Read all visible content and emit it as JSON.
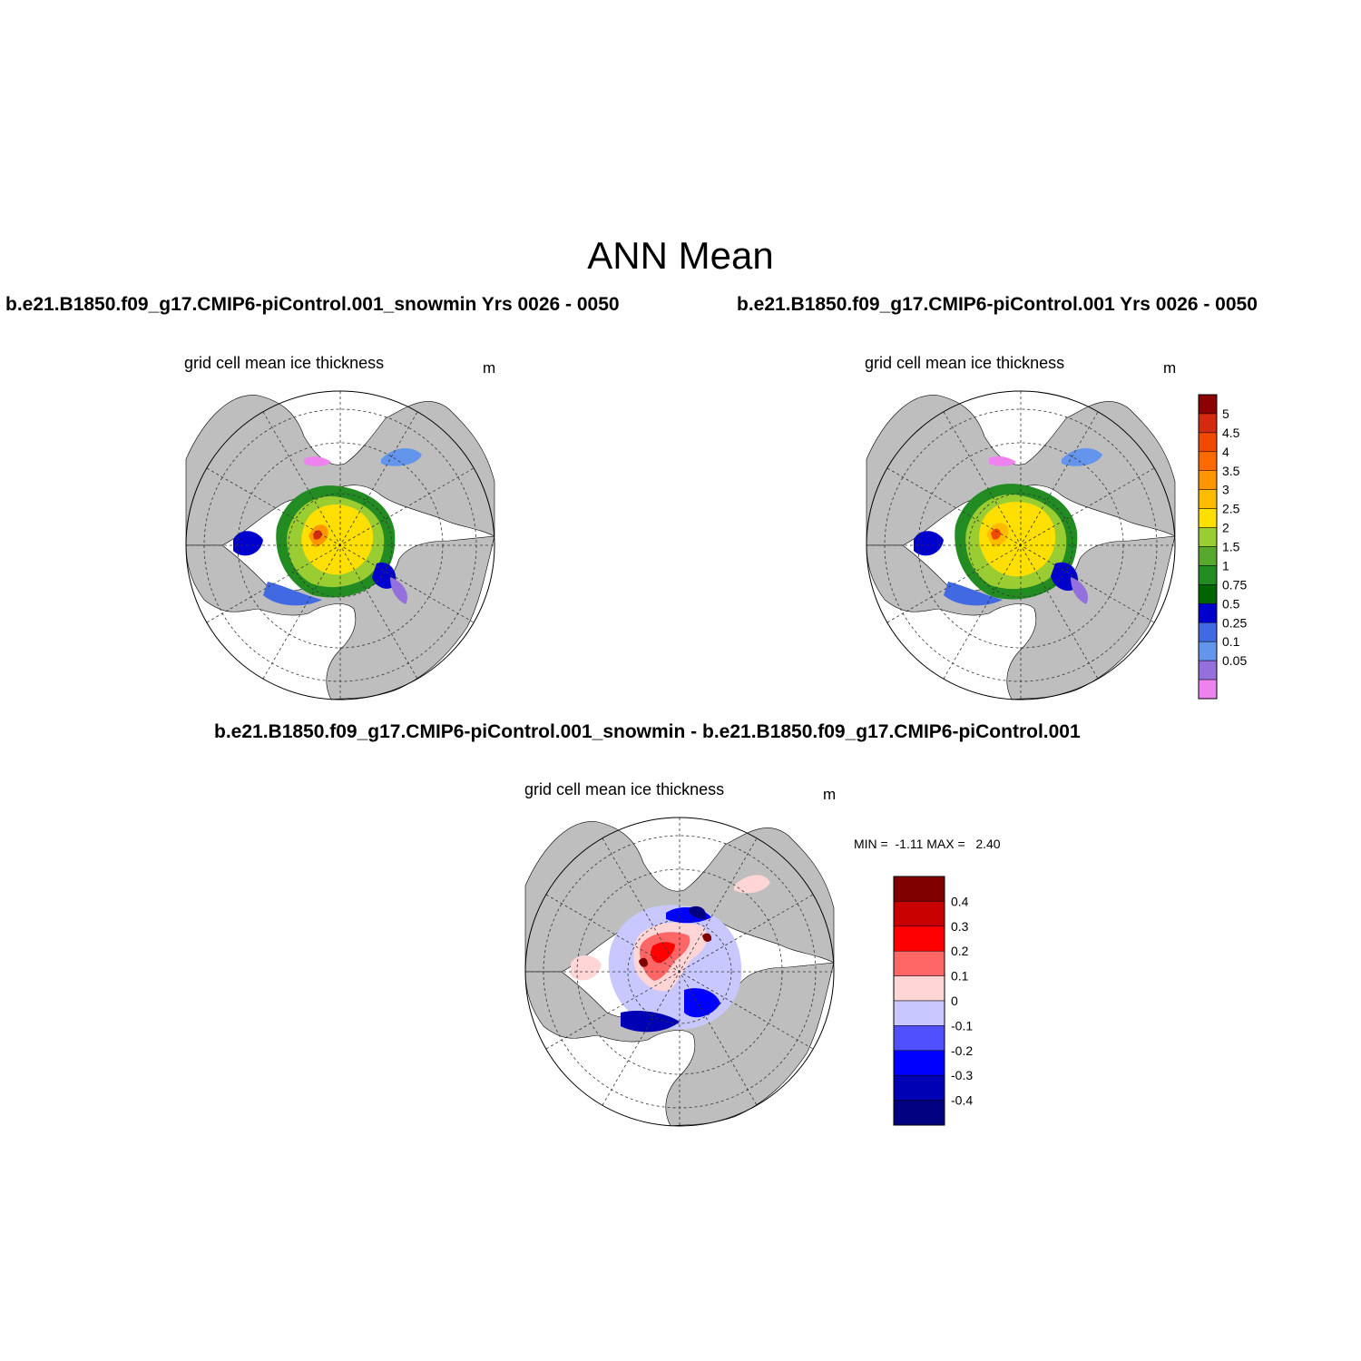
{
  "figure": {
    "title": "ANN Mean"
  },
  "panels": [
    {
      "case_title": "b.e21.B1850.f09_g17.CMIP6-piControl.001_snowmin  Yrs 0026 - 0050",
      "variable": "grid cell mean ice thickness",
      "units": "m"
    },
    {
      "case_title": "b.e21.B1850.f09_g17.CMIP6-piControl.001  Yrs 0026 - 0050",
      "variable": "grid cell mean ice thickness",
      "units": "m"
    },
    {
      "case_title": "b.e21.B1850.f09_g17.CMIP6-piControl.001_snowmin - b.e21.B1850.f09_g17.CMIP6-piControl.001",
      "variable": "grid cell mean ice thickness",
      "units": "m",
      "min_max": "MIN =  -1.11 MAX =   2.40"
    }
  ],
  "colorbars": {
    "thickness": {
      "labels": [
        "5",
        "4.5",
        "4",
        "3.5",
        "3",
        "2.5",
        "2",
        "1.5",
        "1",
        "0.75",
        "0.5",
        "0.25",
        "0.1",
        "0.05"
      ],
      "colors": [
        "#8b0000",
        "#d42a10",
        "#f04a00",
        "#ff6a00",
        "#ff9500",
        "#ffbb00",
        "#ffdf00",
        "#9acd32",
        "#58a82e",
        "#228b22",
        "#006400",
        "#0000cd",
        "#4169e1",
        "#6495ed",
        "#9370db",
        "#ee82ee"
      ]
    },
    "difference": {
      "labels": [
        "0.4",
        "0.3",
        "0.2",
        "0.1",
        "0",
        "-0.1",
        "-0.2",
        "-0.3",
        "-0.4"
      ],
      "colors": [
        "#800000",
        "#c80000",
        "#ff0000",
        "#ff6666",
        "#ffd5d5",
        "#c8c8ff",
        "#5050ff",
        "#0000ff",
        "#0000b4",
        "#000080"
      ]
    }
  },
  "map_colors": {
    "land": "#bebebe",
    "ocean": "#ffffff"
  }
}
